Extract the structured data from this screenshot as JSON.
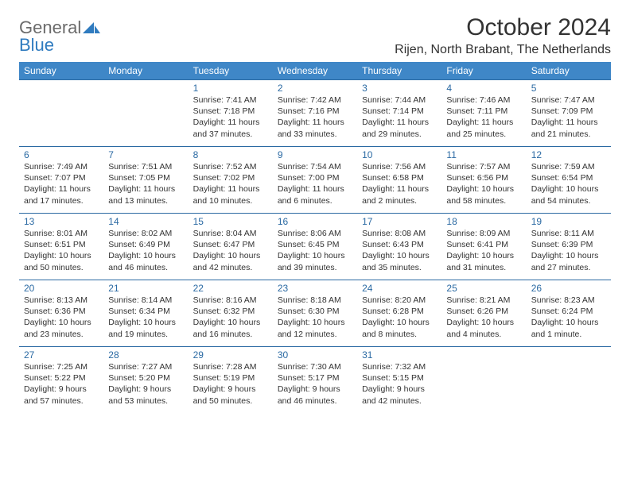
{
  "logo": {
    "line1": "General",
    "line2": "Blue"
  },
  "title": "October 2024",
  "location": "Rijen, North Brabant, The Netherlands",
  "colors": {
    "header_bg": "#3f87c7",
    "header_text": "#ffffff",
    "border": "#2b6aa3",
    "daynum": "#2b6aa3",
    "body_text": "#333333",
    "logo_gray": "#6b6b6b",
    "logo_blue": "#2f7bbf",
    "page_bg": "#ffffff"
  },
  "day_headers": [
    "Sunday",
    "Monday",
    "Tuesday",
    "Wednesday",
    "Thursday",
    "Friday",
    "Saturday"
  ],
  "weeks": [
    [
      null,
      null,
      {
        "n": "1",
        "sr": "7:41 AM",
        "ss": "7:18 PM",
        "dl": "11 hours and 37 minutes."
      },
      {
        "n": "2",
        "sr": "7:42 AM",
        "ss": "7:16 PM",
        "dl": "11 hours and 33 minutes."
      },
      {
        "n": "3",
        "sr": "7:44 AM",
        "ss": "7:14 PM",
        "dl": "11 hours and 29 minutes."
      },
      {
        "n": "4",
        "sr": "7:46 AM",
        "ss": "7:11 PM",
        "dl": "11 hours and 25 minutes."
      },
      {
        "n": "5",
        "sr": "7:47 AM",
        "ss": "7:09 PM",
        "dl": "11 hours and 21 minutes."
      }
    ],
    [
      {
        "n": "6",
        "sr": "7:49 AM",
        "ss": "7:07 PM",
        "dl": "11 hours and 17 minutes."
      },
      {
        "n": "7",
        "sr": "7:51 AM",
        "ss": "7:05 PM",
        "dl": "11 hours and 13 minutes."
      },
      {
        "n": "8",
        "sr": "7:52 AM",
        "ss": "7:02 PM",
        "dl": "11 hours and 10 minutes."
      },
      {
        "n": "9",
        "sr": "7:54 AM",
        "ss": "7:00 PM",
        "dl": "11 hours and 6 minutes."
      },
      {
        "n": "10",
        "sr": "7:56 AM",
        "ss": "6:58 PM",
        "dl": "11 hours and 2 minutes."
      },
      {
        "n": "11",
        "sr": "7:57 AM",
        "ss": "6:56 PM",
        "dl": "10 hours and 58 minutes."
      },
      {
        "n": "12",
        "sr": "7:59 AM",
        "ss": "6:54 PM",
        "dl": "10 hours and 54 minutes."
      }
    ],
    [
      {
        "n": "13",
        "sr": "8:01 AM",
        "ss": "6:51 PM",
        "dl": "10 hours and 50 minutes."
      },
      {
        "n": "14",
        "sr": "8:02 AM",
        "ss": "6:49 PM",
        "dl": "10 hours and 46 minutes."
      },
      {
        "n": "15",
        "sr": "8:04 AM",
        "ss": "6:47 PM",
        "dl": "10 hours and 42 minutes."
      },
      {
        "n": "16",
        "sr": "8:06 AM",
        "ss": "6:45 PM",
        "dl": "10 hours and 39 minutes."
      },
      {
        "n": "17",
        "sr": "8:08 AM",
        "ss": "6:43 PM",
        "dl": "10 hours and 35 minutes."
      },
      {
        "n": "18",
        "sr": "8:09 AM",
        "ss": "6:41 PM",
        "dl": "10 hours and 31 minutes."
      },
      {
        "n": "19",
        "sr": "8:11 AM",
        "ss": "6:39 PM",
        "dl": "10 hours and 27 minutes."
      }
    ],
    [
      {
        "n": "20",
        "sr": "8:13 AM",
        "ss": "6:36 PM",
        "dl": "10 hours and 23 minutes."
      },
      {
        "n": "21",
        "sr": "8:14 AM",
        "ss": "6:34 PM",
        "dl": "10 hours and 19 minutes."
      },
      {
        "n": "22",
        "sr": "8:16 AM",
        "ss": "6:32 PM",
        "dl": "10 hours and 16 minutes."
      },
      {
        "n": "23",
        "sr": "8:18 AM",
        "ss": "6:30 PM",
        "dl": "10 hours and 12 minutes."
      },
      {
        "n": "24",
        "sr": "8:20 AM",
        "ss": "6:28 PM",
        "dl": "10 hours and 8 minutes."
      },
      {
        "n": "25",
        "sr": "8:21 AM",
        "ss": "6:26 PM",
        "dl": "10 hours and 4 minutes."
      },
      {
        "n": "26",
        "sr": "8:23 AM",
        "ss": "6:24 PM",
        "dl": "10 hours and 1 minute."
      }
    ],
    [
      {
        "n": "27",
        "sr": "7:25 AM",
        "ss": "5:22 PM",
        "dl": "9 hours and 57 minutes."
      },
      {
        "n": "28",
        "sr": "7:27 AM",
        "ss": "5:20 PM",
        "dl": "9 hours and 53 minutes."
      },
      {
        "n": "29",
        "sr": "7:28 AM",
        "ss": "5:19 PM",
        "dl": "9 hours and 50 minutes."
      },
      {
        "n": "30",
        "sr": "7:30 AM",
        "ss": "5:17 PM",
        "dl": "9 hours and 46 minutes."
      },
      {
        "n": "31",
        "sr": "7:32 AM",
        "ss": "5:15 PM",
        "dl": "9 hours and 42 minutes."
      },
      null,
      null
    ]
  ],
  "labels": {
    "sunrise": "Sunrise: ",
    "sunset": "Sunset: ",
    "daylight": "Daylight: "
  }
}
